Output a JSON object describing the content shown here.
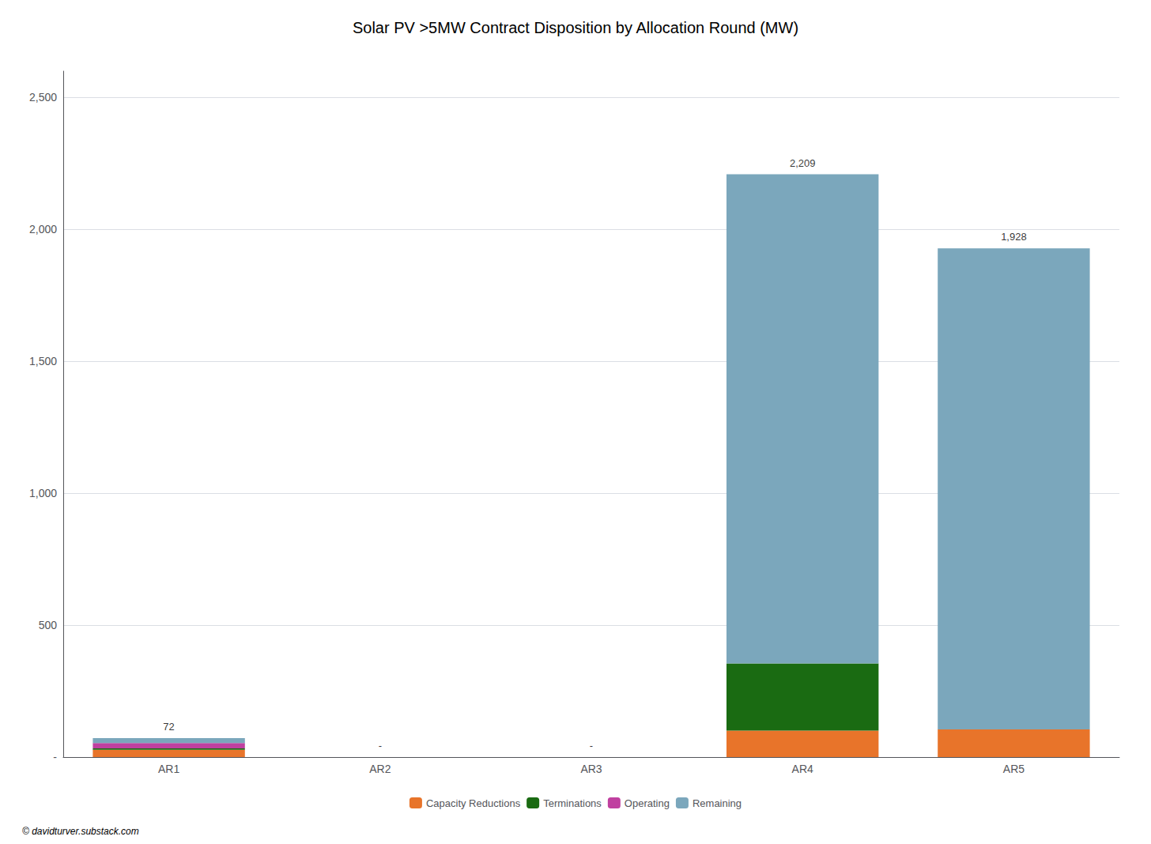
{
  "chart_data": {
    "type": "bar",
    "stacked": true,
    "title": "Solar PV >5MW Contract Disposition by Allocation Round (MW)",
    "categories": [
      "AR1",
      "AR2",
      "AR3",
      "AR4",
      "AR5"
    ],
    "series": [
      {
        "name": "Capacity Reductions",
        "color": "#E8742A",
        "values": [
          28,
          0,
          0,
          100,
          105
        ]
      },
      {
        "name": "Terminations",
        "color": "#1A6B12",
        "values": [
          5,
          0,
          0,
          255,
          0
        ]
      },
      {
        "name": "Operating",
        "color": "#C040A0",
        "values": [
          20,
          0,
          0,
          0,
          0
        ]
      },
      {
        "name": "Remaining",
        "color": "#7BA7BC",
        "values": [
          19,
          0,
          0,
          1854,
          1823
        ]
      }
    ],
    "totals": [
      72,
      0,
      0,
      2209,
      1928
    ],
    "total_labels": [
      "72",
      "-",
      "-",
      "2,209",
      "1,928"
    ],
    "ylim": [
      0,
      2600
    ],
    "yticks": [
      {
        "value": 0,
        "label": "-"
      },
      500,
      {
        "value": 1000,
        "label": "1,000"
      },
      {
        "value": 1500,
        "label": "1,500"
      },
      {
        "value": 2000,
        "label": "2,000"
      },
      {
        "value": 2500,
        "label": "2,500"
      }
    ],
    "grid": true,
    "legend": "bottom",
    "footer": "© davidturver.substack.com"
  }
}
